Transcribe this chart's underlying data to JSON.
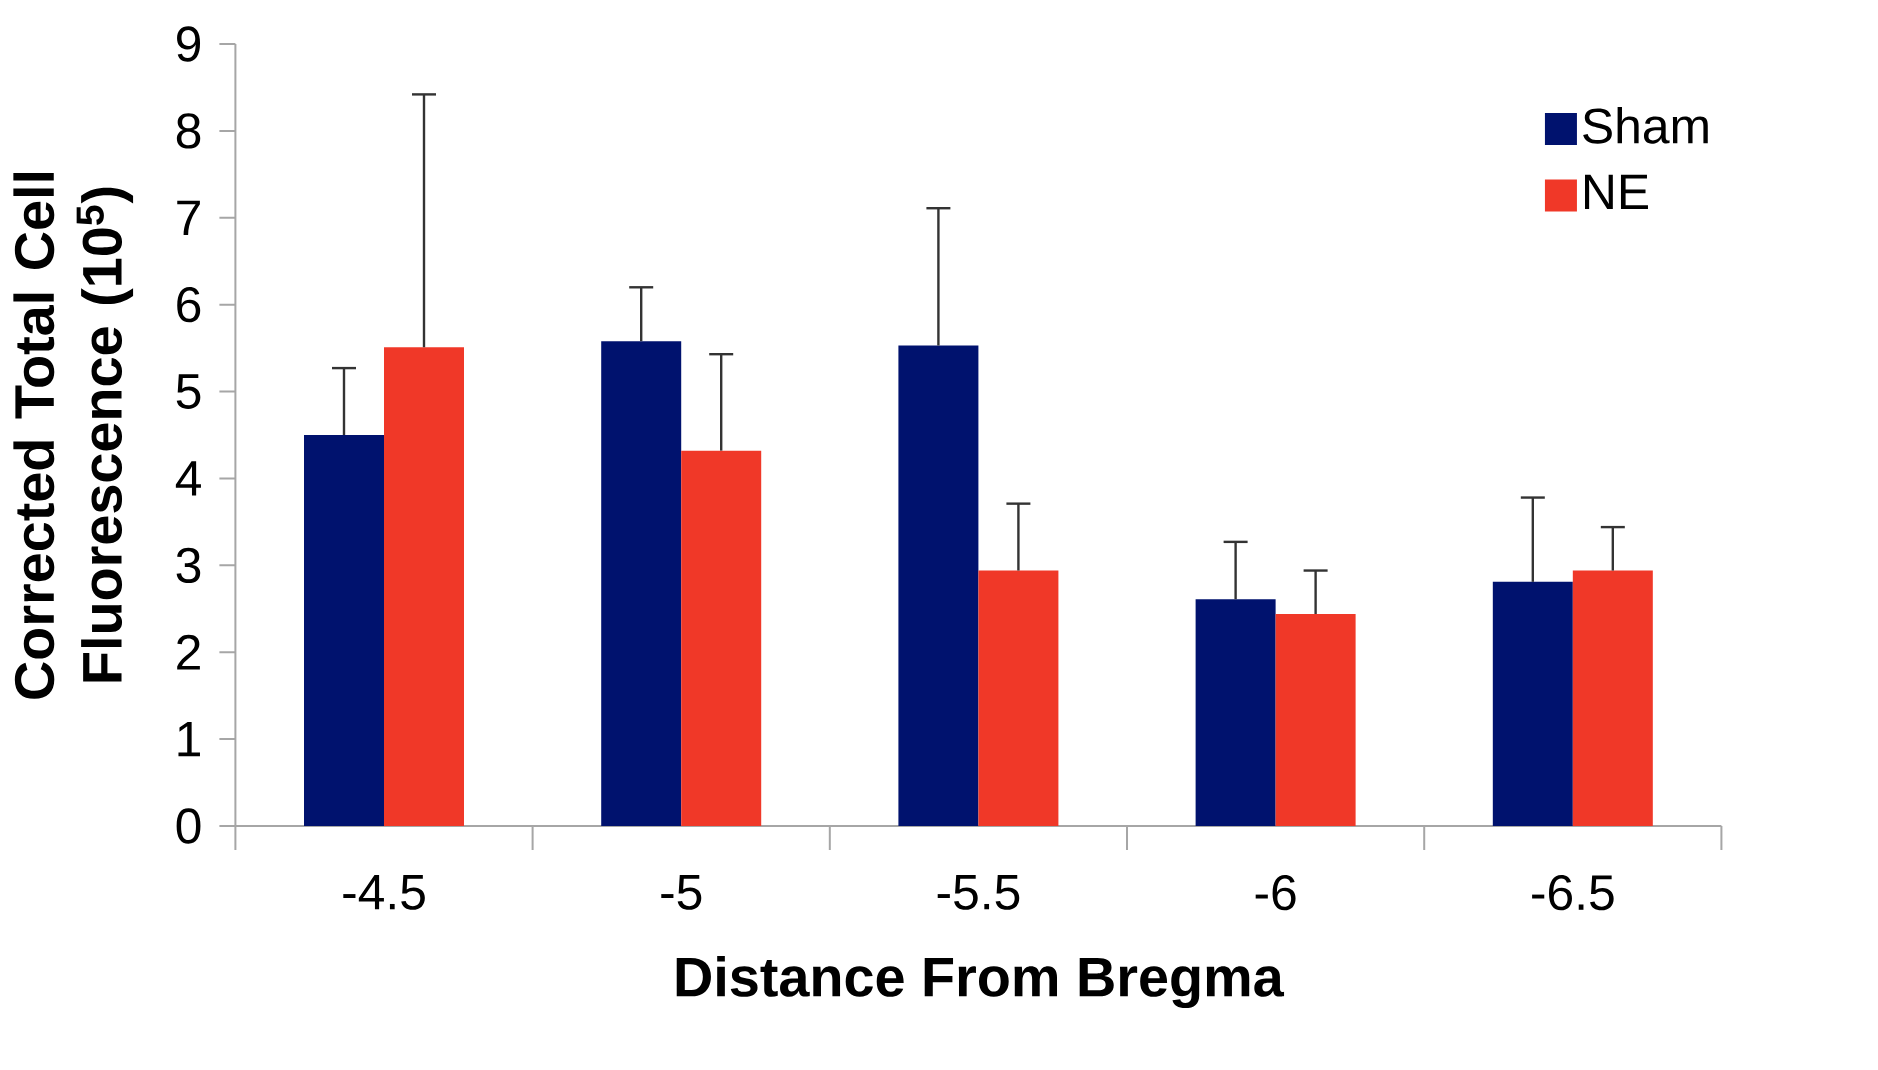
{
  "chart_data": {
    "type": "bar",
    "xlabel": "Distance From Bregma",
    "ylabel": "Corrected Total Cell Fluorescence (10$^{5}$)",
    "categories": [
      "-4.5",
      "-5",
      "-5.5",
      "-6",
      "-6.5"
    ],
    "series": [
      {
        "name": "Sham",
        "color": "#00126e",
        "values": [
          4.5,
          5.58,
          5.53,
          2.61,
          2.81
        ],
        "errors": [
          [
            4.5,
            5.27
          ],
          [
            5.58,
            6.2
          ],
          [
            5.53,
            7.11
          ],
          [
            2.61,
            3.27
          ],
          [
            2.81,
            3.78
          ]
        ]
      },
      {
        "name": "NE",
        "color": "#f03828",
        "values": [
          5.51,
          4.32,
          2.94,
          2.44,
          2.94
        ],
        "errors": [
          [
            5.51,
            8.42
          ],
          [
            4.32,
            5.43
          ],
          [
            2.94,
            3.71
          ],
          [
            2.44,
            2.94
          ],
          [
            2.94,
            3.44
          ]
        ]
      }
    ],
    "ylim": [
      0,
      9
    ],
    "yticks": [
      0,
      1,
      2,
      3,
      4,
      5,
      6,
      7,
      8,
      9
    ],
    "legend": "top right"
  }
}
